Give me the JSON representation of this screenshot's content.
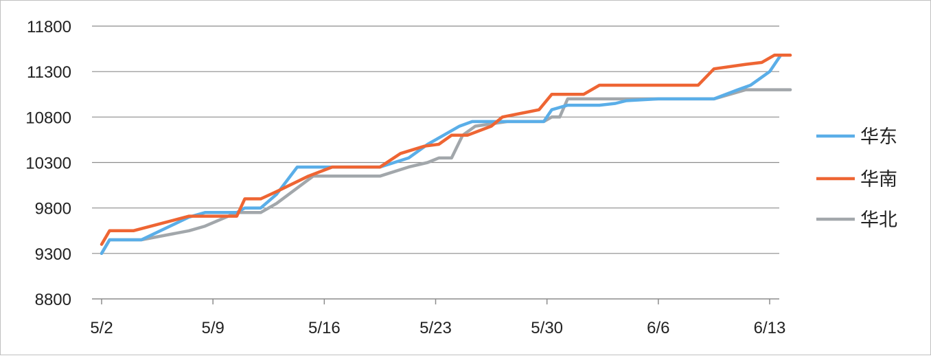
{
  "chart_data": {
    "type": "line",
    "title": "",
    "xlabel": "",
    "ylabel": "",
    "ylim": [
      8800,
      11800
    ],
    "yticks": [
      "8800",
      "9300",
      "9800",
      "10300",
      "10800",
      "11300",
      "11800"
    ],
    "xticks": [
      {
        "label": "5/2",
        "day": 0
      },
      {
        "label": "5/9",
        "day": 7
      },
      {
        "label": "5/16",
        "day": 14
      },
      {
        "label": "5/23",
        "day": 21
      },
      {
        "label": "5/30",
        "day": 28
      },
      {
        "label": "6/6",
        "day": 35
      },
      {
        "label": "6/13",
        "day": 42
      }
    ],
    "grid": "horizontal",
    "legend": "right",
    "series": [
      {
        "name": "华东",
        "color": "#5aaee8",
        "points": [
          [
            0,
            9300
          ],
          [
            0.5,
            9450
          ],
          [
            2.5,
            9450
          ],
          [
            5.5,
            9700
          ],
          [
            6.5,
            9750
          ],
          [
            8.5,
            9750
          ],
          [
            9,
            9800
          ],
          [
            10,
            9800
          ],
          [
            11,
            9950
          ],
          [
            12.3,
            10250
          ],
          [
            14.5,
            10250
          ],
          [
            16.5,
            10250
          ],
          [
            17.5,
            10250
          ],
          [
            19.3,
            10350
          ],
          [
            20.5,
            10500
          ],
          [
            21.5,
            10600
          ],
          [
            22.5,
            10700
          ],
          [
            23.3,
            10750
          ],
          [
            25.5,
            10750
          ],
          [
            26.5,
            10750
          ],
          [
            27.8,
            10750
          ],
          [
            28.3,
            10880
          ],
          [
            29.3,
            10930
          ],
          [
            31.3,
            10930
          ],
          [
            32.3,
            10950
          ],
          [
            33,
            10980
          ],
          [
            35,
            11000
          ],
          [
            37,
            11000
          ],
          [
            38.5,
            11000
          ],
          [
            40,
            11100
          ],
          [
            40.8,
            11150
          ],
          [
            42,
            11300
          ],
          [
            42.7,
            11480
          ]
        ]
      },
      {
        "name": "华南",
        "color": "#ee6533",
        "points": [
          [
            0,
            9400
          ],
          [
            0.5,
            9550
          ],
          [
            2,
            9550
          ],
          [
            5.5,
            9710
          ],
          [
            7.5,
            9710
          ],
          [
            8.5,
            9710
          ],
          [
            9,
            9900
          ],
          [
            10,
            9900
          ],
          [
            11,
            9980
          ],
          [
            13,
            10150
          ],
          [
            14.5,
            10250
          ],
          [
            16.5,
            10250
          ],
          [
            17.5,
            10250
          ],
          [
            18.8,
            10400
          ],
          [
            20.3,
            10480
          ],
          [
            21.2,
            10500
          ],
          [
            22,
            10600
          ],
          [
            23,
            10600
          ],
          [
            24.5,
            10700
          ],
          [
            25.2,
            10800
          ],
          [
            27.5,
            10880
          ],
          [
            28.3,
            11050
          ],
          [
            30.3,
            11050
          ],
          [
            31.3,
            11150
          ],
          [
            33.3,
            11150
          ],
          [
            37.5,
            11150
          ],
          [
            38.5,
            11330
          ],
          [
            40.5,
            11380
          ],
          [
            41.5,
            11400
          ],
          [
            42.3,
            11480
          ],
          [
            43.3,
            11480
          ]
        ]
      },
      {
        "name": "华北",
        "color": "#a2a7ab",
        "points": [
          [
            0,
            9300
          ],
          [
            0.5,
            9450
          ],
          [
            2.5,
            9450
          ],
          [
            5.5,
            9550
          ],
          [
            6.5,
            9600
          ],
          [
            8.5,
            9750
          ],
          [
            9,
            9750
          ],
          [
            10,
            9750
          ],
          [
            11,
            9850
          ],
          [
            13.3,
            10150
          ],
          [
            14.5,
            10150
          ],
          [
            16.5,
            10150
          ],
          [
            17.5,
            10150
          ],
          [
            19.3,
            10250
          ],
          [
            20.5,
            10300
          ],
          [
            21.2,
            10350
          ],
          [
            22,
            10350
          ],
          [
            22.7,
            10600
          ],
          [
            23.5,
            10700
          ],
          [
            25.5,
            10750
          ],
          [
            26.5,
            10750
          ],
          [
            27.8,
            10750
          ],
          [
            28.3,
            10800
          ],
          [
            28.8,
            10800
          ],
          [
            29.3,
            11000
          ],
          [
            31.3,
            11000
          ],
          [
            33.3,
            11000
          ],
          [
            37.5,
            11000
          ],
          [
            38.5,
            11000
          ],
          [
            40.5,
            11100
          ],
          [
            41.5,
            11100
          ],
          [
            42.3,
            11100
          ],
          [
            43.3,
            11100
          ]
        ]
      }
    ]
  }
}
